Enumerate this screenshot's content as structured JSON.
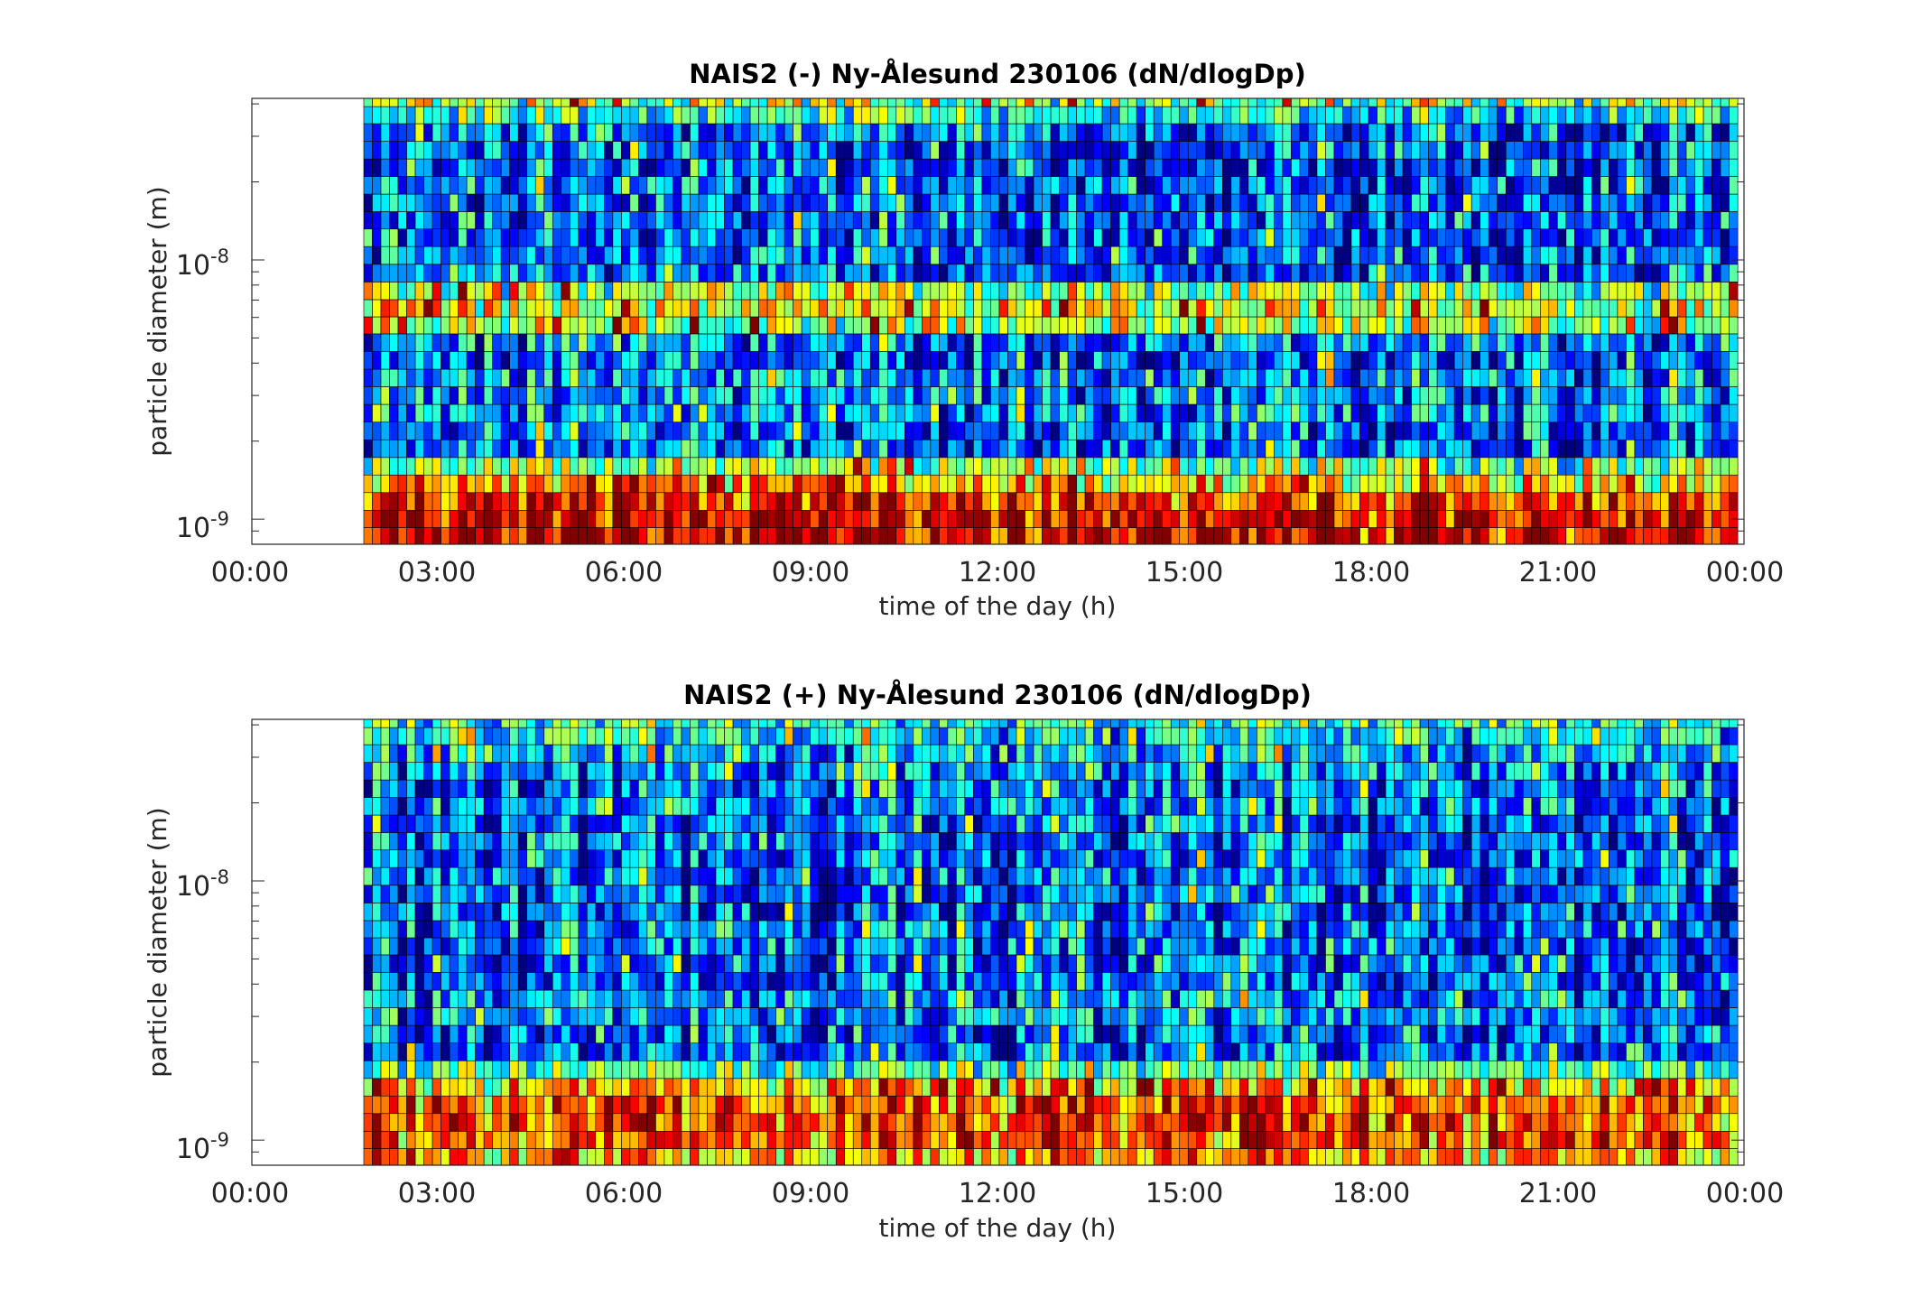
{
  "chart_data": [
    {
      "type": "heatmap",
      "title": "NAIS2 (-) Ny-Ålesund 230106 (dN/dlogDp)",
      "xlabel": "time of the day (h)",
      "ylabel": "particle diameter (m)",
      "x_tick_labels": [
        "00:00",
        "03:00",
        "06:00",
        "09:00",
        "12:00",
        "15:00",
        "18:00",
        "21:00",
        "00:00"
      ],
      "x_tick_hours": [
        0,
        3,
        6,
        9,
        12,
        15,
        18,
        21,
        24
      ],
      "y_tick_labels": [
        {
          "base": "10",
          "exp": "-9",
          "value": 1e-09
        },
        {
          "base": "10",
          "exp": "-8",
          "value": 1e-08
        }
      ],
      "xlim_hours": [
        0,
        24
      ],
      "ylim_m": [
        8e-10,
        4.2e-08
      ],
      "y_scale": "log",
      "data_start_hour": 1.8,
      "data_end_hour": 23.9,
      "colormap": "jet",
      "color_value_range": [
        0,
        1
      ],
      "size_bins_m": [
        8.6e-10,
        1e-09,
        1.17e-09,
        1.37e-09,
        1.6e-09,
        1.87e-09,
        2.19e-09,
        2.56e-09,
        3e-09,
        3.5e-09,
        4.1e-09,
        4.8e-09,
        5.6e-09,
        6.5e-09,
        7.6e-09,
        8.9e-09,
        1.04e-08,
        1.22e-08,
        1.42e-08,
        1.66e-08,
        1.94e-08,
        2.27e-08,
        2.65e-08,
        3.1e-08,
        3.63e-08,
        4.2e-08
      ],
      "relative_level_by_bin": [
        0.9,
        0.9,
        0.85,
        0.68,
        0.5,
        0.2,
        0.2,
        0.25,
        0.25,
        0.25,
        0.2,
        0.22,
        0.55,
        0.6,
        0.5,
        0.2,
        0.2,
        0.2,
        0.2,
        0.2,
        0.2,
        0.2,
        0.2,
        0.2,
        0.4,
        0.5
      ]
    },
    {
      "type": "heatmap",
      "title": "NAIS2 (+) Ny-Ålesund 230106 (dN/dlogDp)",
      "xlabel": "time of the day (h)",
      "ylabel": "particle diameter (m)",
      "x_tick_labels": [
        "00:00",
        "03:00",
        "06:00",
        "09:00",
        "12:00",
        "15:00",
        "18:00",
        "21:00",
        "00:00"
      ],
      "x_tick_hours": [
        0,
        3,
        6,
        9,
        12,
        15,
        18,
        21,
        24
      ],
      "y_tick_labels": [
        {
          "base": "10",
          "exp": "-9",
          "value": 1e-09
        },
        {
          "base": "10",
          "exp": "-8",
          "value": 1e-08
        }
      ],
      "xlim_hours": [
        0,
        24
      ],
      "ylim_m": [
        8e-10,
        4.2e-08
      ],
      "y_scale": "log",
      "data_start_hour": 1.8,
      "data_end_hour": 23.9,
      "colormap": "jet",
      "color_value_range": [
        0,
        1
      ],
      "size_bins_m": [
        8.6e-10,
        1e-09,
        1.17e-09,
        1.37e-09,
        1.6e-09,
        1.87e-09,
        2.19e-09,
        2.56e-09,
        3e-09,
        3.5e-09,
        4.1e-09,
        4.8e-09,
        5.6e-09,
        6.5e-09,
        7.6e-09,
        8.9e-09,
        1.04e-08,
        1.22e-08,
        1.42e-08,
        1.66e-08,
        1.94e-08,
        2.27e-08,
        2.65e-08,
        3.1e-08,
        3.63e-08,
        4.2e-08
      ],
      "relative_level_by_bin": [
        0.7,
        0.8,
        0.8,
        0.78,
        0.65,
        0.45,
        0.2,
        0.2,
        0.25,
        0.25,
        0.2,
        0.2,
        0.2,
        0.2,
        0.2,
        0.2,
        0.2,
        0.2,
        0.2,
        0.2,
        0.22,
        0.22,
        0.25,
        0.3,
        0.35,
        0.4
      ]
    }
  ]
}
